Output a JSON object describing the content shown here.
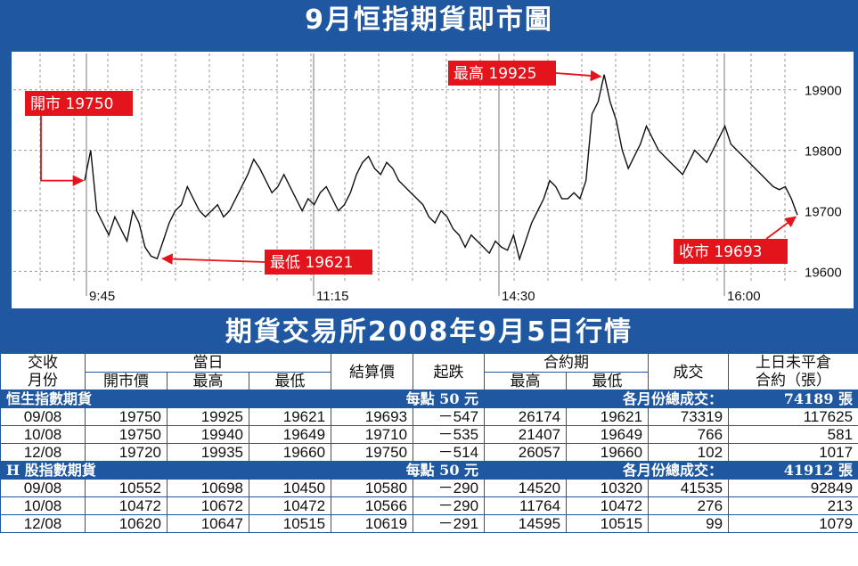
{
  "banner_title": "9月恒指期貨即市圖",
  "table_title": "期貨交易所2008年9月5日行情",
  "colors": {
    "brand_blue": "#1f57a0",
    "annotation_red": "#e3141b",
    "grid": "#9a9a9a"
  },
  "chart_data": {
    "type": "line",
    "title": "9月恒指期貨即市圖",
    "x_ticks": [
      "9:45",
      "11:15",
      "14:30",
      "16:00"
    ],
    "y_ticks": [
      19600,
      19700,
      19800,
      19900
    ],
    "ylim": [
      19580,
      19960
    ],
    "grid": true,
    "series": [
      {
        "values": [
          19750,
          19800,
          19700,
          19680,
          19660,
          19690,
          19670,
          19650,
          19700,
          19680,
          19640,
          19625,
          19621,
          19650,
          19680,
          19700,
          19710,
          19740,
          19720,
          19700,
          19690,
          19700,
          19710,
          19690,
          19700,
          19720,
          19740,
          19760,
          19785,
          19770,
          19750,
          19730,
          19740,
          19760,
          19740,
          19720,
          19700,
          19720,
          19710,
          19730,
          19740,
          19720,
          19700,
          19710,
          19730,
          19760,
          19780,
          19790,
          19770,
          19760,
          19780,
          19770,
          19750,
          19740,
          19730,
          19720,
          19710,
          19690,
          19680,
          19700,
          19690,
          19670,
          19660,
          19640,
          19660,
          19650,
          19640,
          19630,
          19650,
          19640,
          19635,
          19660,
          19620,
          19650,
          19680,
          19700,
          19720,
          19750,
          19740,
          19720,
          19720,
          19730,
          19720,
          19750,
          19860,
          19880,
          19925,
          19880,
          19850,
          19800,
          19770,
          19790,
          19810,
          19840,
          19820,
          19800,
          19790,
          19780,
          19770,
          19760,
          19780,
          19800,
          19790,
          19780,
          19800,
          19820,
          19840,
          19810,
          19800,
          19790,
          19780,
          19770,
          19760,
          19750,
          19740,
          19735,
          19740,
          19720,
          19693
        ]
      }
    ],
    "annotations": [
      {
        "label": "開市 19750",
        "value": 19750
      },
      {
        "label": "最高 19925",
        "value": 19925
      },
      {
        "label": "最低 19621",
        "value": 19621
      },
      {
        "label": "收市 19693",
        "value": 19693
      }
    ]
  },
  "table": {
    "h_contract": "交收\n月份",
    "h_today": "當日",
    "h_open": "開市價",
    "h_high": "最高",
    "h_low": "最低",
    "h_settle": "結算價",
    "h_change": "起跌",
    "h_life": "合約期",
    "h_life_high": "最高",
    "h_life_low": "最低",
    "h_volume": "成交",
    "h_oi": "上日未平倉\n合約（張）",
    "sections": [
      {
        "name": "恒生指數期貨",
        "point_value": "每點 50 元",
        "total_label": "各月份總成交：",
        "total_value": "74189 張",
        "rows": [
          [
            "09/08",
            "19750",
            "19925",
            "19621",
            "19693",
            "－547",
            "26174",
            "19621",
            "73319",
            "117625"
          ],
          [
            "10/08",
            "19750",
            "19940",
            "19649",
            "19710",
            "－535",
            "21407",
            "19649",
            "766",
            "581"
          ],
          [
            "12/08",
            "19720",
            "19935",
            "19660",
            "19750",
            "－514",
            "26057",
            "19660",
            "102",
            "1017"
          ]
        ]
      },
      {
        "name": "H 股指數期貨",
        "point_value": "每點 50 元",
        "total_label": "各月份總成交：",
        "total_value": "41912 張",
        "rows": [
          [
            "09/08",
            "10552",
            "10698",
            "10450",
            "10580",
            "－290",
            "14520",
            "10320",
            "41535",
            "92849"
          ],
          [
            "10/08",
            "10472",
            "10672",
            "10472",
            "10566",
            "－290",
            "11764",
            "10472",
            "276",
            "213"
          ],
          [
            "12/08",
            "10620",
            "10647",
            "10515",
            "10619",
            "－291",
            "14595",
            "10515",
            "99",
            "1079"
          ]
        ]
      }
    ]
  }
}
